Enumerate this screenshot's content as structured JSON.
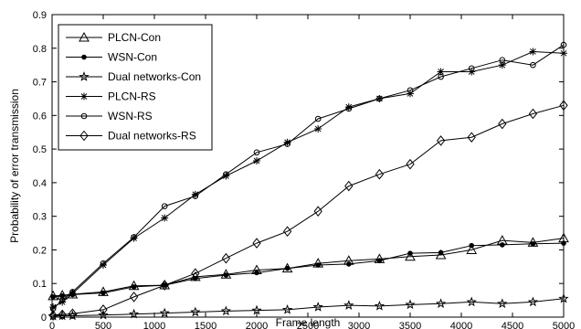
{
  "chart_data": {
    "type": "line",
    "xlabel": "Frame length",
    "ylabel": "Probability of error transmission",
    "xlim": [
      0,
      5000
    ],
    "ylim": [
      0,
      0.9
    ],
    "xticks": [
      0,
      500,
      1000,
      1500,
      2000,
      2500,
      3000,
      3500,
      4000,
      4500,
      5000
    ],
    "yticks": [
      0,
      0.1,
      0.2,
      0.3,
      0.4,
      0.5,
      0.6,
      0.7,
      0.8,
      0.9
    ],
    "xtick_labels": [
      "0",
      "500",
      "1000",
      "1500",
      "2000",
      "2500",
      "3000",
      "3500",
      "4000",
      "4500",
      "5000"
    ],
    "ytick_labels": [
      "0",
      "0.1",
      "0.2",
      "0.3",
      "0.4",
      "0.5",
      "0.6",
      "0.7",
      "0.8",
      "0.9"
    ],
    "grid": false,
    "legend_position": "top-left",
    "series": [
      {
        "name": "PLCN-Con",
        "marker": "triangle",
        "x": [
          10,
          100,
          200,
          500,
          800,
          1100,
          1400,
          1700,
          2000,
          2300,
          2600,
          2900,
          3200,
          3500,
          3800,
          4100,
          4400,
          4700,
          5000
        ],
        "y": [
          0.063,
          0.065,
          0.068,
          0.075,
          0.093,
          0.095,
          0.12,
          0.127,
          0.14,
          0.145,
          0.16,
          0.168,
          0.173,
          0.18,
          0.185,
          0.2,
          0.228,
          0.222,
          0.235
        ]
      },
      {
        "name": "WSN-Con",
        "marker": "dot",
        "x": [
          10,
          100,
          200,
          500,
          800,
          1100,
          1400,
          1700,
          2000,
          2300,
          2600,
          2900,
          3200,
          3500,
          3800,
          4100,
          4400,
          4700,
          5000
        ],
        "y": [
          0.06,
          0.063,
          0.067,
          0.072,
          0.09,
          0.095,
          0.115,
          0.125,
          0.132,
          0.145,
          0.155,
          0.158,
          0.168,
          0.19,
          0.192,
          0.213,
          0.215,
          0.218,
          0.22
        ]
      },
      {
        "name": "Dual networks-Con",
        "marker": "star",
        "x": [
          10,
          100,
          200,
          500,
          800,
          1100,
          1400,
          1700,
          2000,
          2300,
          2600,
          2900,
          3200,
          3500,
          3800,
          4100,
          4400,
          4700,
          5000
        ],
        "y": [
          0.003,
          0.004,
          0.004,
          0.006,
          0.009,
          0.012,
          0.015,
          0.018,
          0.02,
          0.022,
          0.03,
          0.035,
          0.033,
          0.037,
          0.04,
          0.045,
          0.04,
          0.045,
          0.055
        ]
      },
      {
        "name": "PLCN-RS",
        "marker": "asterisk",
        "x": [
          10,
          100,
          200,
          500,
          800,
          1100,
          1400,
          1700,
          2000,
          2300,
          2600,
          2900,
          3200,
          3500,
          3800,
          4100,
          4400,
          4700,
          5000
        ],
        "y": [
          0.03,
          0.045,
          0.07,
          0.155,
          0.235,
          0.295,
          0.365,
          0.42,
          0.465,
          0.52,
          0.56,
          0.625,
          0.65,
          0.665,
          0.73,
          0.73,
          0.75,
          0.79,
          0.785
        ]
      },
      {
        "name": "WSN-RS",
        "marker": "circle",
        "x": [
          10,
          100,
          200,
          500,
          800,
          1100,
          1400,
          1700,
          2000,
          2300,
          2600,
          2900,
          3200,
          3500,
          3800,
          4100,
          4400,
          4700,
          5000
        ],
        "y": [
          0.025,
          0.05,
          0.075,
          0.16,
          0.238,
          0.33,
          0.36,
          0.425,
          0.49,
          0.515,
          0.59,
          0.62,
          0.65,
          0.675,
          0.715,
          0.74,
          0.765,
          0.75,
          0.81
        ]
      },
      {
        "name": "Dual networks-RS",
        "marker": "diamond",
        "x": [
          10,
          100,
          200,
          500,
          800,
          1100,
          1400,
          1700,
          2000,
          2300,
          2600,
          2900,
          3200,
          3500,
          3800,
          4100,
          4400,
          4700,
          5000
        ],
        "y": [
          0.005,
          0.007,
          0.01,
          0.022,
          0.06,
          0.095,
          0.13,
          0.175,
          0.22,
          0.255,
          0.315,
          0.39,
          0.425,
          0.455,
          0.525,
          0.535,
          0.575,
          0.605,
          0.63
        ]
      }
    ]
  }
}
